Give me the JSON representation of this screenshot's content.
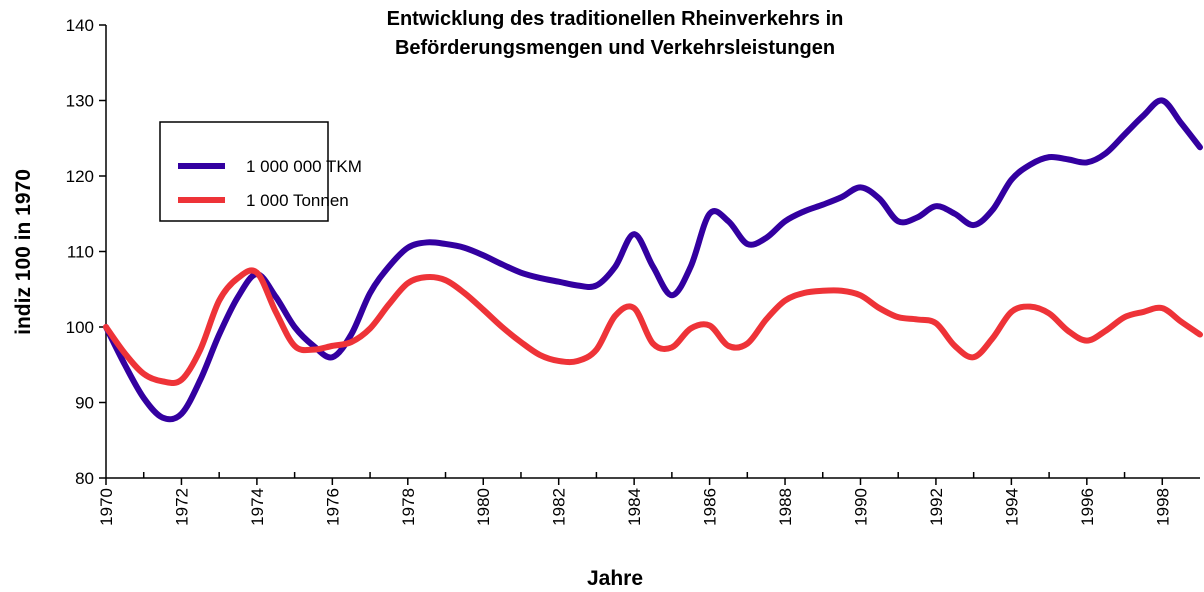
{
  "chart_data": {
    "type": "line",
    "title": [
      "Entwicklung des traditionellen Rheinverkehrs in",
      "Beförderungsmengen und Verkehrsleistungen"
    ],
    "x_label": "Jahre",
    "y_label": "indiz 100 in 1970",
    "x": [
      1970,
      1970.5,
      1971,
      1971.5,
      1972,
      1972.5,
      1973,
      1973.5,
      1974,
      1974.5,
      1975,
      1975.5,
      1976,
      1976.5,
      1977,
      1977.5,
      1978,
      1978.5,
      1979,
      1979.5,
      1980,
      1980.5,
      1981,
      1981.5,
      1982,
      1982.5,
      1983,
      1983.5,
      1984,
      1984.5,
      1985,
      1985.5,
      1986,
      1986.5,
      1987,
      1987.5,
      1988,
      1988.5,
      1989,
      1989.5,
      1990,
      1990.5,
      1991,
      1991.5,
      1992,
      1992.5,
      1993,
      1993.5,
      1994,
      1994.5,
      1995,
      1995.5,
      1996,
      1996.5,
      1997,
      1997.5,
      1998,
      1998.5,
      1999
    ],
    "series": [
      {
        "name": "1 000 000 TKM",
        "color": "#3300a0",
        "values": [
          100,
          95,
          90.6,
          88,
          88.5,
          93,
          99,
          104,
          107,
          104,
          100,
          97.5,
          96,
          99,
          104.5,
          108,
          110.5,
          111.2,
          111,
          110.5,
          109.5,
          108.3,
          107.2,
          106.5,
          106,
          105.5,
          105.5,
          108,
          112.3,
          108,
          104.2,
          108,
          115,
          114,
          111,
          111.8,
          114,
          115.3,
          116.2,
          117.2,
          118.5,
          117,
          114,
          114.5,
          116,
          115,
          113.5,
          115.5,
          119.5,
          121.5,
          122.5,
          122.2,
          121.8,
          123,
          125.5,
          128,
          130,
          127,
          123.8
        ]
      },
      {
        "name": "1 000 Tonnen",
        "color": "#ee3338",
        "values": [
          100,
          96.5,
          93.8,
          92.8,
          93,
          97,
          103.5,
          106.5,
          107.2,
          102,
          97.5,
          97,
          97.5,
          98,
          99.8,
          103,
          105.8,
          106.6,
          106.2,
          104.5,
          102.3,
          100,
          98,
          96.3,
          95.5,
          95.5,
          97,
          101.5,
          102.5,
          97.8,
          97.3,
          99.8,
          100.2,
          97.5,
          97.8,
          101,
          103.5,
          104.5,
          104.8,
          104.8,
          104.2,
          102.5,
          101.3,
          101,
          100.5,
          97.5,
          96,
          98.5,
          102,
          102.7,
          101.8,
          99.5,
          98.2,
          99.5,
          101.3,
          102,
          102.5,
          100.7,
          99
        ]
      }
    ],
    "xlim": [
      1970,
      1999
    ],
    "xticks": [
      1970,
      1972,
      1974,
      1976,
      1978,
      1980,
      1982,
      1984,
      1986,
      1988,
      1990,
      1992,
      1994,
      1996,
      1998
    ],
    "ylim": [
      80,
      140
    ],
    "yticks": [
      80,
      90,
      100,
      110,
      120,
      130,
      140
    ],
    "grid": false,
    "legend": "upper left"
  }
}
